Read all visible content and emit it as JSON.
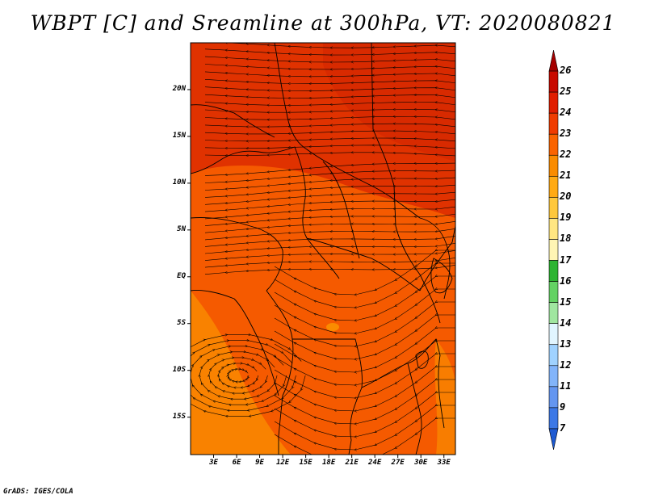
{
  "title": "WBPT [C] and Sreamline at 300hPa, VT: 2020080821",
  "credit": "GrADS: IGES/COLA",
  "lat_ticks": [
    {
      "label": "20N",
      "lat": 20
    },
    {
      "label": "15N",
      "lat": 15
    },
    {
      "label": "10N",
      "lat": 10
    },
    {
      "label": "5N",
      "lat": 5
    },
    {
      "label": "EQ",
      "lat": 0
    },
    {
      "label": "5S",
      "lat": -5
    },
    {
      "label": "10S",
      "lat": -10
    },
    {
      "label": "15S",
      "lat": -15
    }
  ],
  "lon_ticks": [
    {
      "label": "3E",
      "lon": 3
    },
    {
      "label": "6E",
      "lon": 6
    },
    {
      "label": "9E",
      "lon": 9
    },
    {
      "label": "12E",
      "lon": 12
    },
    {
      "label": "15E",
      "lon": 15
    },
    {
      "label": "18E",
      "lon": 18
    },
    {
      "label": "21E",
      "lon": 21
    },
    {
      "label": "24E",
      "lon": 24
    },
    {
      "label": "27E",
      "lon": 27
    },
    {
      "label": "30E",
      "lon": 30
    },
    {
      "label": "33E",
      "lon": 33
    }
  ],
  "map_extent": {
    "lon_min": 0,
    "lon_max": 34.5,
    "lat_min": -19,
    "lat_max": 25
  },
  "colorbar": {
    "labels": [
      "26",
      "25",
      "24",
      "23",
      "22",
      "21",
      "20",
      "19",
      "18",
      "17",
      "16",
      "15",
      "14",
      "13",
      "12",
      "11",
      "9",
      "7"
    ],
    "colors": [
      "#a50000",
      "#c80a00",
      "#e11e00",
      "#f03c00",
      "#fa6400",
      "#fa8c00",
      "#ffaa14",
      "#ffc83c",
      "#ffe682",
      "#fff5b4",
      "#2db432",
      "#64d264",
      "#a0e6a0",
      "#e1f5ff",
      "#a0d2ff",
      "#82b4fa",
      "#6496f0",
      "#3c78e6",
      "#1e5ad2"
    ]
  },
  "field_colors": {
    "north_hot": "#e03200",
    "north_hotter": "#d82a00",
    "main": "#f55a00",
    "mid": "#f06a00",
    "warm_patch": "#fa8c00"
  }
}
